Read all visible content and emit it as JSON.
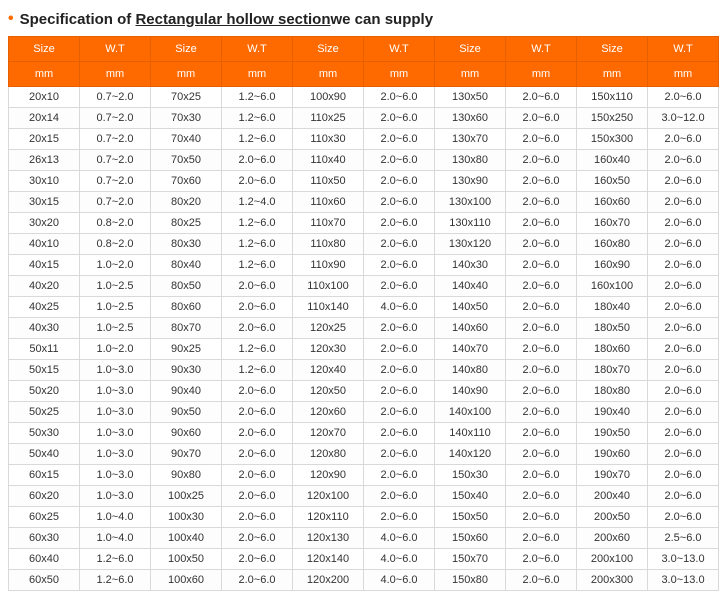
{
  "title": {
    "prefix": "Specification of ",
    "underline": "Rectangular hollow section",
    "suffix": "we can supply"
  },
  "table": {
    "header_rows": [
      [
        "Size",
        "W.T",
        "Size",
        "W.T",
        "Size",
        "W.T",
        "Size",
        "W.T",
        "Size",
        "W.T"
      ],
      [
        "mm",
        "mm",
        "mm",
        "mm",
        "mm",
        "mm",
        "mm",
        "mm",
        "mm",
        "mm"
      ]
    ],
    "rows": [
      [
        "20x10",
        "0.7~2.0",
        "70x25",
        "1.2~6.0",
        "100x90",
        "2.0~6.0",
        "130x50",
        "2.0~6.0",
        "150x110",
        "2.0~6.0"
      ],
      [
        "20x14",
        "0.7~2.0",
        "70x30",
        "1.2~6.0",
        "110x25",
        "2.0~6.0",
        "130x60",
        "2.0~6.0",
        "150x250",
        "3.0~12.0"
      ],
      [
        "20x15",
        "0.7~2.0",
        "70x40",
        "1.2~6.0",
        "110x30",
        "2.0~6.0",
        "130x70",
        "2.0~6.0",
        "150x300",
        "2.0~6.0"
      ],
      [
        "26x13",
        "0.7~2.0",
        "70x50",
        "2.0~6.0",
        "110x40",
        "2.0~6.0",
        "130x80",
        "2.0~6.0",
        "160x40",
        "2.0~6.0"
      ],
      [
        "30x10",
        "0.7~2.0",
        "70x60",
        "2.0~6.0",
        "110x50",
        "2.0~6.0",
        "130x90",
        "2.0~6.0",
        "160x50",
        "2.0~6.0"
      ],
      [
        "30x15",
        "0.7~2.0",
        "80x20",
        "1.2~4.0",
        "110x60",
        "2.0~6.0",
        "130x100",
        "2.0~6.0",
        "160x60",
        "2.0~6.0"
      ],
      [
        "30x20",
        "0.8~2.0",
        "80x25",
        "1.2~6.0",
        "110x70",
        "2.0~6.0",
        "130x110",
        "2.0~6.0",
        "160x70",
        "2.0~6.0"
      ],
      [
        "40x10",
        "0.8~2.0",
        "80x30",
        "1.2~6.0",
        "110x80",
        "2.0~6.0",
        "130x120",
        "2.0~6.0",
        "160x80",
        "2.0~6.0"
      ],
      [
        "40x15",
        "1.0~2.0",
        "80x40",
        "1.2~6.0",
        "110x90",
        "2.0~6.0",
        "140x30",
        "2.0~6.0",
        "160x90",
        "2.0~6.0"
      ],
      [
        "40x20",
        "1.0~2.5",
        "80x50",
        "2.0~6.0",
        "110x100",
        "2.0~6.0",
        "140x40",
        "2.0~6.0",
        "160x100",
        "2.0~6.0"
      ],
      [
        "40x25",
        "1.0~2.5",
        "80x60",
        "2.0~6.0",
        "110x140",
        "4.0~6.0",
        "140x50",
        "2.0~6.0",
        "180x40",
        "2.0~6.0"
      ],
      [
        "40x30",
        "1.0~2.5",
        "80x70",
        "2.0~6.0",
        "120x25",
        "2.0~6.0",
        "140x60",
        "2.0~6.0",
        "180x50",
        "2.0~6.0"
      ],
      [
        "50x11",
        "1.0~2.0",
        "90x25",
        "1.2~6.0",
        "120x30",
        "2.0~6.0",
        "140x70",
        "2.0~6.0",
        "180x60",
        "2.0~6.0"
      ],
      [
        "50x15",
        "1.0~3.0",
        "90x30",
        "1.2~6.0",
        "120x40",
        "2.0~6.0",
        "140x80",
        "2.0~6.0",
        "180x70",
        "2.0~6.0"
      ],
      [
        "50x20",
        "1.0~3.0",
        "90x40",
        "2.0~6.0",
        "120x50",
        "2.0~6.0",
        "140x90",
        "2.0~6.0",
        "180x80",
        "2.0~6.0"
      ],
      [
        "50x25",
        "1.0~3.0",
        "90x50",
        "2.0~6.0",
        "120x60",
        "2.0~6.0",
        "140x100",
        "2.0~6.0",
        "190x40",
        "2.0~6.0"
      ],
      [
        "50x30",
        "1.0~3.0",
        "90x60",
        "2.0~6.0",
        "120x70",
        "2.0~6.0",
        "140x110",
        "2.0~6.0",
        "190x50",
        "2.0~6.0"
      ],
      [
        "50x40",
        "1.0~3.0",
        "90x70",
        "2.0~6.0",
        "120x80",
        "2.0~6.0",
        "140x120",
        "2.0~6.0",
        "190x60",
        "2.0~6.0"
      ],
      [
        "60x15",
        "1.0~3.0",
        "90x80",
        "2.0~6.0",
        "120x90",
        "2.0~6.0",
        "150x30",
        "2.0~6.0",
        "190x70",
        "2.0~6.0"
      ],
      [
        "60x20",
        "1.0~3.0",
        "100x25",
        "2.0~6.0",
        "120x100",
        "2.0~6.0",
        "150x40",
        "2.0~6.0",
        "200x40",
        "2.0~6.0"
      ],
      [
        "60x25",
        "1.0~4.0",
        "100x30",
        "2.0~6.0",
        "120x110",
        "2.0~6.0",
        "150x50",
        "2.0~6.0",
        "200x50",
        "2.0~6.0"
      ],
      [
        "60x30",
        "1.0~4.0",
        "100x40",
        "2.0~6.0",
        "120x130",
        "4.0~6.0",
        "150x60",
        "2.0~6.0",
        "200x60",
        "2.5~6.0"
      ],
      [
        "60x40",
        "1.2~6.0",
        "100x50",
        "2.0~6.0",
        "120x140",
        "4.0~6.0",
        "150x70",
        "2.0~6.0",
        "200x100",
        "3.0~13.0"
      ],
      [
        "60x50",
        "1.2~6.0",
        "100x60",
        "2.0~6.0",
        "120x200",
        "4.0~6.0",
        "150x80",
        "2.0~6.0",
        "200x300",
        "3.0~13.0"
      ]
    ]
  },
  "colors": {
    "accent": "#ff6a00",
    "border": "#d9d9d9",
    "text": "#333333",
    "header_text": "#ffffff"
  }
}
